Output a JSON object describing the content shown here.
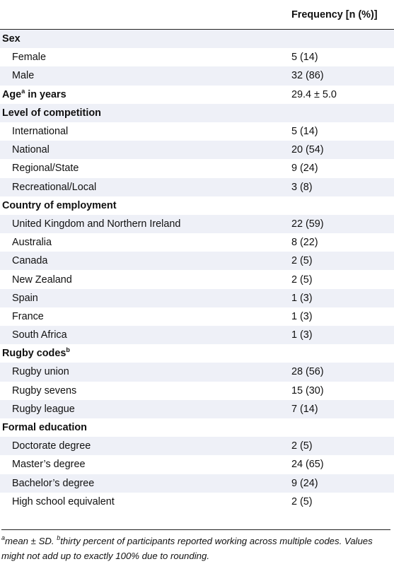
{
  "table": {
    "header": {
      "label": "",
      "value": "Frequency [n (%)]"
    },
    "rows": [
      {
        "type": "section",
        "label": "Sex",
        "sup": "",
        "value": ""
      },
      {
        "type": "item",
        "label": "Female",
        "sup": "",
        "value": "5 (14)"
      },
      {
        "type": "item",
        "label": "Male",
        "sup": "",
        "value": "32 (86)"
      },
      {
        "type": "section",
        "label": "Age",
        "sup": "a",
        "suffix": " in years",
        "value": "29.4 ± 5.0"
      },
      {
        "type": "section",
        "label": "Level of competition",
        "sup": "",
        "value": ""
      },
      {
        "type": "item",
        "label": "International",
        "sup": "",
        "value": "5 (14)"
      },
      {
        "type": "item",
        "label": "National",
        "sup": "",
        "value": "20 (54)"
      },
      {
        "type": "item",
        "label": "Regional/State",
        "sup": "",
        "value": "9 (24)"
      },
      {
        "type": "item",
        "label": "Recreational/Local",
        "sup": "",
        "value": "3 (8)"
      },
      {
        "type": "section",
        "label": "Country of employment",
        "sup": "",
        "value": ""
      },
      {
        "type": "item",
        "label": "United Kingdom and Northern Ireland",
        "sup": "",
        "value": "22 (59)"
      },
      {
        "type": "item",
        "label": "Australia",
        "sup": "",
        "value": "8 (22)"
      },
      {
        "type": "item",
        "label": "Canada",
        "sup": "",
        "value": "2 (5)"
      },
      {
        "type": "item",
        "label": "New Zealand",
        "sup": "",
        "value": "2 (5)"
      },
      {
        "type": "item",
        "label": "Spain",
        "sup": "",
        "value": "1 (3)"
      },
      {
        "type": "item",
        "label": "France",
        "sup": "",
        "value": "1 (3)"
      },
      {
        "type": "item",
        "label": "South Africa",
        "sup": "",
        "value": "1 (3)"
      },
      {
        "type": "section",
        "label": "Rugby codes",
        "sup": "b",
        "value": ""
      },
      {
        "type": "item",
        "label": "Rugby union",
        "sup": "",
        "value": "28 (56)"
      },
      {
        "type": "item",
        "label": "Rugby sevens",
        "sup": "",
        "value": "15 (30)"
      },
      {
        "type": "item",
        "label": "Rugby league",
        "sup": "",
        "value": "7 (14)"
      },
      {
        "type": "section",
        "label": "Formal education",
        "sup": "",
        "value": ""
      },
      {
        "type": "item",
        "label": "Doctorate degree",
        "sup": "",
        "value": "2 (5)"
      },
      {
        "type": "item",
        "label": "Master’s degree",
        "sup": "",
        "value": "24 (65)"
      },
      {
        "type": "item",
        "label": "Bachelor’s degree",
        "sup": "",
        "value": "9 (24)"
      },
      {
        "type": "item",
        "label": "High school equivalent",
        "sup": "",
        "value": "2 (5)"
      }
    ]
  },
  "footnote": {
    "sup_a": "a",
    "text_a": "mean ± SD. ",
    "sup_b": "b",
    "text_b": "thirty percent of participants reported working across multiple codes. Values might not add up to exactly 100% due to rounding."
  },
  "colors": {
    "shade": "#eef0f7",
    "rule": "#222222",
    "text": "#111111"
  }
}
